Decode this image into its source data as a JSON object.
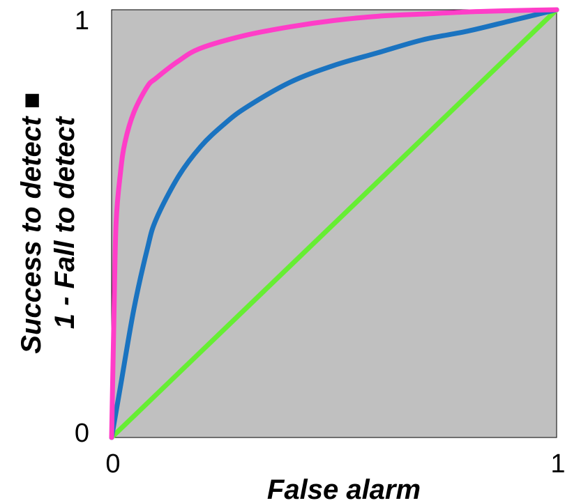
{
  "chart_data": {
    "type": "line",
    "title": "",
    "xlabel": "False alarm",
    "ylabel_lines": [
      "Success to detect ■",
      "1 - Fall to detect"
    ],
    "xlim": [
      0,
      1
    ],
    "ylim": [
      0,
      1
    ],
    "x_ticks": [
      "0",
      "1"
    ],
    "y_ticks": [
      "0",
      "1"
    ],
    "grid": false,
    "legend": false,
    "background": "#c0c0c0",
    "series": [
      {
        "color": "#ff3dc8",
        "x": [
          0,
          0.005,
          0.01,
          0.02,
          0.03,
          0.05,
          0.08,
          0.1,
          0.15,
          0.2,
          0.3,
          0.4,
          0.5,
          0.6,
          0.7,
          0.8,
          0.9,
          1.0
        ],
        "y": [
          0,
          0.27,
          0.5,
          0.62,
          0.69,
          0.76,
          0.82,
          0.84,
          0.88,
          0.91,
          0.94,
          0.96,
          0.975,
          0.985,
          0.99,
          0.995,
          0.998,
          1.0
        ]
      },
      {
        "color": "#1a73c0",
        "x": [
          0,
          0.02,
          0.05,
          0.08,
          0.1,
          0.15,
          0.2,
          0.25,
          0.3,
          0.4,
          0.5,
          0.6,
          0.7,
          0.8,
          0.9,
          1.0
        ],
        "y": [
          0,
          0.12,
          0.3,
          0.44,
          0.51,
          0.61,
          0.68,
          0.73,
          0.77,
          0.83,
          0.87,
          0.9,
          0.93,
          0.95,
          0.975,
          1.0
        ]
      },
      {
        "color": "#66ee33",
        "x": [
          0,
          1
        ],
        "y": [
          0,
          1
        ]
      }
    ]
  }
}
